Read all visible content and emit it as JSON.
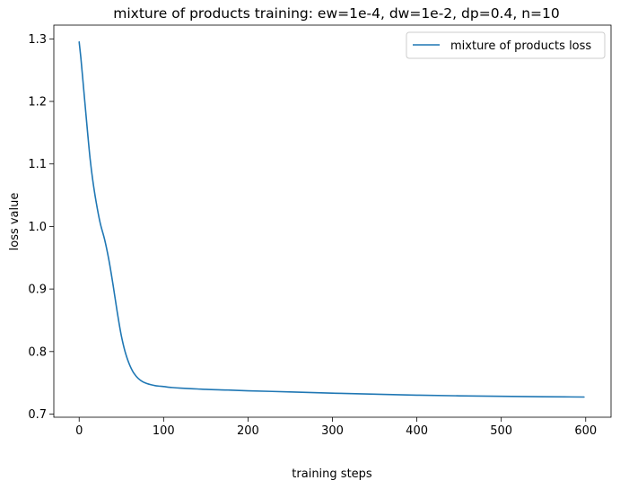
{
  "chart_data": {
    "type": "line",
    "title": "mixture of products training: ew=1e-4, dw=1e-2, dp=0.4, n=10",
    "xlabel": "training steps",
    "ylabel": "loss value",
    "xlim": [
      -30,
      630
    ],
    "ylim": [
      0.695,
      1.322
    ],
    "xticks": [
      0,
      100,
      200,
      300,
      400,
      500,
      600
    ],
    "xtick_labels": [
      "0",
      "100",
      "200",
      "300",
      "400",
      "500",
      "600"
    ],
    "yticks": [
      0.7,
      0.8,
      0.9,
      1.0,
      1.1,
      1.2,
      1.3
    ],
    "ytick_labels": [
      "0.7",
      "0.8",
      "0.9",
      "1.0",
      "1.1",
      "1.2",
      "1.3"
    ],
    "grid": false,
    "legend": {
      "position": "top-right",
      "entries": [
        "mixture of products loss"
      ]
    },
    "series": [
      {
        "name": "mixture of products loss",
        "color": "#1f77b4",
        "x": [
          0,
          2,
          5,
          8,
          10,
          13,
          16,
          20,
          25,
          30,
          35,
          40,
          45,
          50,
          55,
          60,
          65,
          70,
          75,
          80,
          85,
          90,
          95,
          100,
          110,
          120,
          130,
          140,
          150,
          175,
          200,
          250,
          300,
          350,
          400,
          450,
          500,
          550,
          598
        ],
        "y": [
          1.295,
          1.27,
          1.225,
          1.18,
          1.15,
          1.108,
          1.075,
          1.04,
          1.005,
          0.98,
          0.948,
          0.908,
          0.864,
          0.825,
          0.797,
          0.778,
          0.765,
          0.757,
          0.752,
          0.749,
          0.747,
          0.7455,
          0.7447,
          0.744,
          0.7425,
          0.7415,
          0.7408,
          0.7402,
          0.7395,
          0.7385,
          0.7373,
          0.7355,
          0.7335,
          0.7318,
          0.7303,
          0.7292,
          0.7284,
          0.7278,
          0.7273
        ]
      }
    ]
  }
}
